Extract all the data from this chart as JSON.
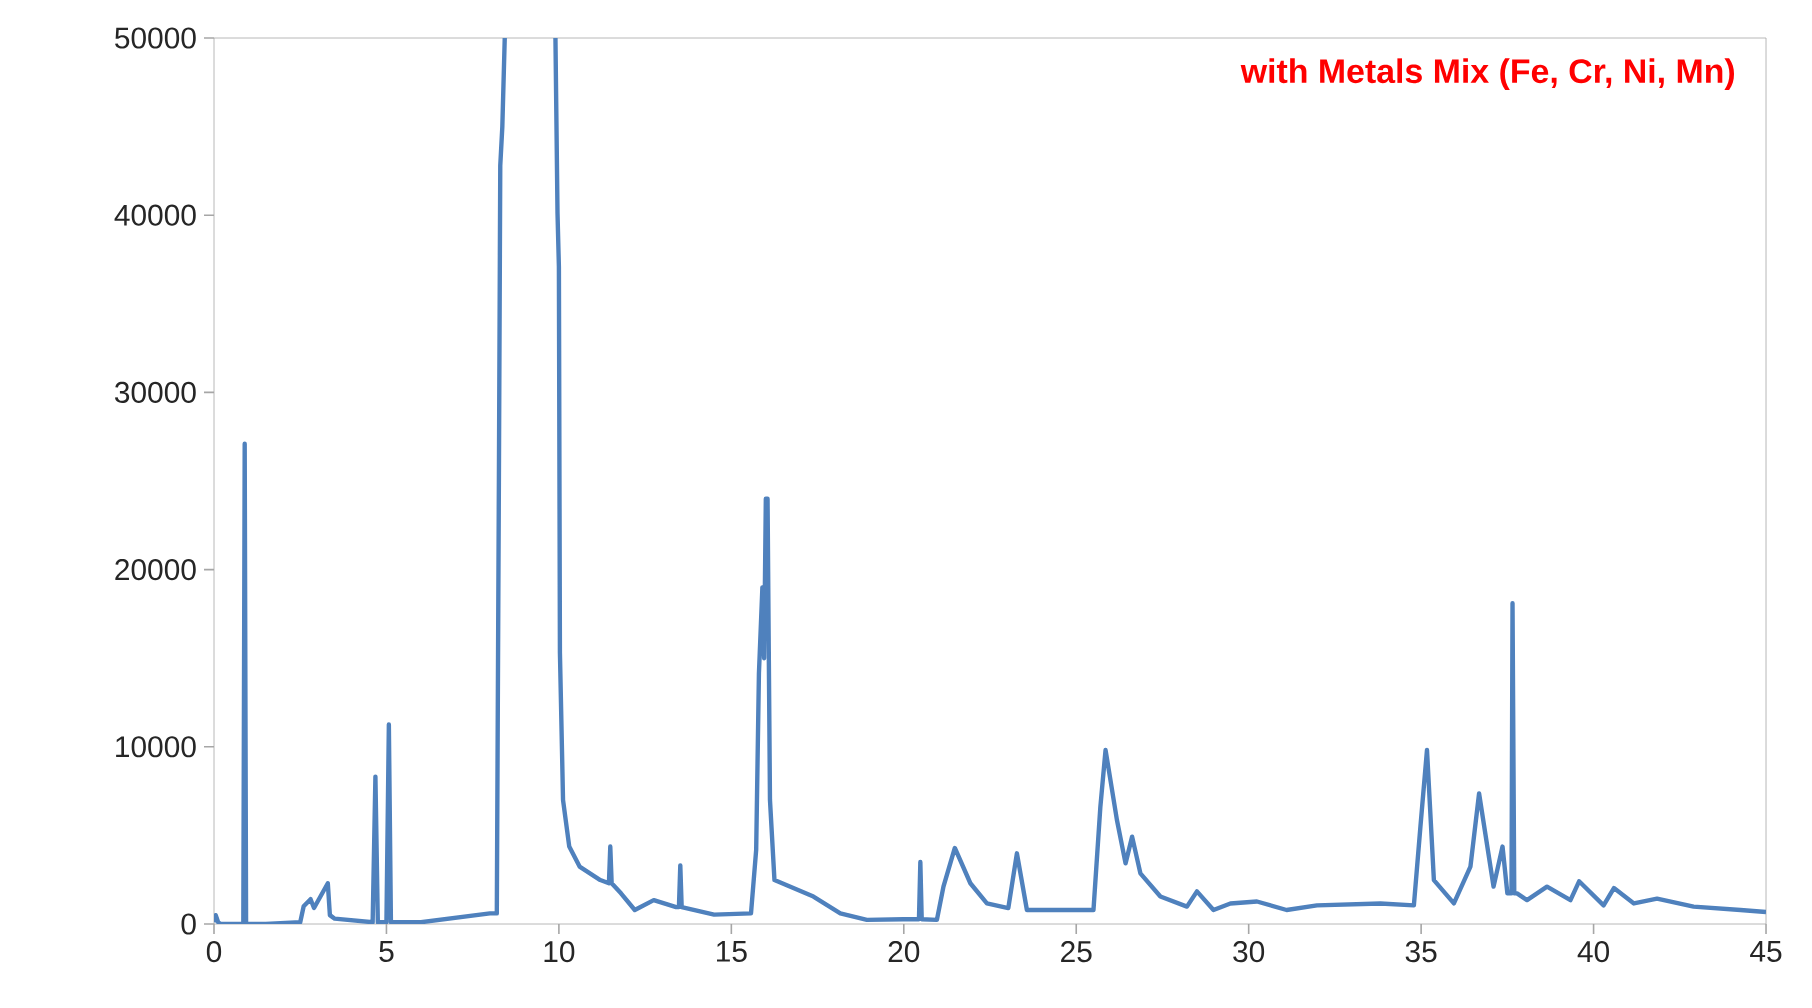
{
  "chart_data": {
    "type": "line",
    "annotations": [
      "with Metals Mix (Fe, Cr, Ni, Mn)"
    ],
    "x": [
      0,
      0.05,
      0.12,
      0.2,
      0.85,
      0.89,
      0.93,
      1.5,
      2.5,
      2.6,
      2.8,
      2.9,
      3.1,
      3.3,
      3.36,
      3.5,
      4.6,
      4.68,
      4.75,
      5.0,
      5.07,
      5.13,
      6.0,
      8.0,
      8.2,
      8.26,
      8.3,
      8.36,
      8.43,
      9.85,
      9.9,
      9.96,
      10.0,
      10.03,
      10.12,
      10.3,
      10.6,
      11.2,
      11.45,
      11.49,
      11.53,
      11.8,
      12.2,
      12.75,
      13.4,
      13.48,
      13.52,
      13.56,
      14.5,
      15.57,
      15.72,
      15.8,
      15.9,
      15.95,
      16.0,
      16.05,
      16.12,
      16.25,
      17.38,
      18.16,
      18.93,
      19.99,
      20.44,
      20.48,
      20.52,
      20.96,
      21.15,
      21.48,
      21.93,
      22.41,
      23.03,
      23.28,
      23.57,
      25.5,
      25.7,
      25.85,
      26.18,
      26.43,
      26.62,
      26.86,
      27.44,
      28.21,
      28.5,
      28.98,
      29.47,
      30.24,
      31.1,
      31.98,
      33.82,
      34.79,
      34.98,
      35.17,
      35.37,
      35.95,
      36.43,
      36.68,
      37.1,
      37.36,
      37.5,
      37.62,
      37.65,
      37.7,
      37.78,
      38.07,
      38.65,
      39.33,
      39.58,
      40.29,
      40.59,
      41.17,
      41.84,
      42.9,
      44.26,
      45
    ],
    "values": [
      100,
      500,
      100,
      0,
      0,
      27100,
      0,
      0,
      100,
      1000,
      1400,
      900,
      1600,
      2300,
      500,
      300,
      100,
      8320,
      100,
      100,
      11260,
      100,
      100,
      600,
      600,
      24900,
      42800,
      45000,
      50000,
      null,
      50000,
      40100,
      37100,
      15300,
      7000,
      4370,
      3240,
      2480,
      2300,
      4370,
      2300,
      1730,
      790,
      1350,
      950,
      950,
      3310,
      950,
      530,
      600,
      4180,
      14150,
      19000,
      15000,
      24000,
      24000,
      7000,
      2480,
      1550,
      600,
      230,
      270,
      270,
      3500,
      270,
      230,
      2110,
      4290,
      2300,
      1160,
      900,
      3990,
      790,
      790,
      6620,
      9820,
      5870,
      3420,
      4930,
      2860,
      1550,
      980,
      1840,
      790,
      1160,
      1270,
      790,
      1050,
      1160,
      1050,
      5500,
      9820,
      2480,
      1160,
      3240,
      7370,
      2110,
      4370,
      1730,
      1730,
      18100,
      1730,
      1730,
      1350,
      2110,
      1350,
      2410,
      1050,
      2030,
      1160,
      1430,
      980,
      790,
      680
    ],
    "color": "#4f81bd",
    "xlim": [
      0,
      45
    ],
    "ylim": [
      0,
      50000
    ],
    "xticks": [
      0,
      5,
      10,
      15,
      20,
      25,
      30,
      35,
      40,
      45
    ],
    "yticks": [
      0,
      10000,
      20000,
      30000,
      40000,
      50000
    ],
    "grid": false,
    "marker": "none",
    "line_style": "solid"
  }
}
